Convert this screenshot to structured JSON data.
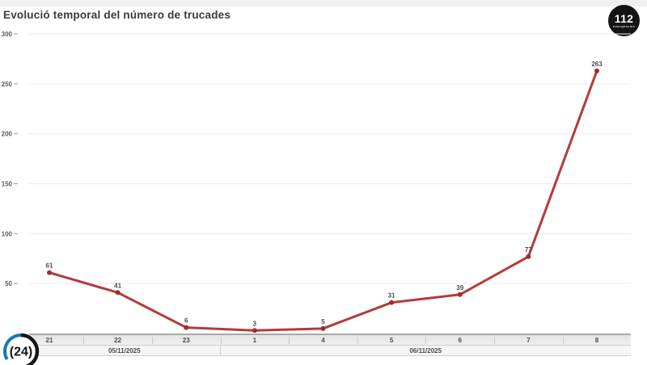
{
  "header": {
    "title": "Evolució temporal del número de trucades"
  },
  "logos": {
    "emergency": {
      "number": "112",
      "label": "emergències"
    },
    "channel": {
      "display": "(24)"
    }
  },
  "chart_data": {
    "type": "line",
    "title": "Evolució temporal del número de trucades",
    "x": [
      "21",
      "22",
      "23",
      "1",
      "4",
      "5",
      "6",
      "7",
      "8"
    ],
    "values": [
      61,
      41,
      6,
      3,
      5,
      31,
      39,
      77,
      263
    ],
    "date_groups": [
      {
        "label": "05/11/2025",
        "span": 3
      },
      {
        "label": "06/11/2025",
        "span": 6
      }
    ],
    "y_ticks": [
      50,
      100,
      150,
      200,
      250,
      300
    ],
    "ylim": [
      0,
      300
    ],
    "grid": true,
    "legend": false,
    "line_color": "#b43a3a",
    "point_color": "#9c2f2f",
    "grid_color": "#ebebeb",
    "axis_color": "#a9a9a9"
  }
}
